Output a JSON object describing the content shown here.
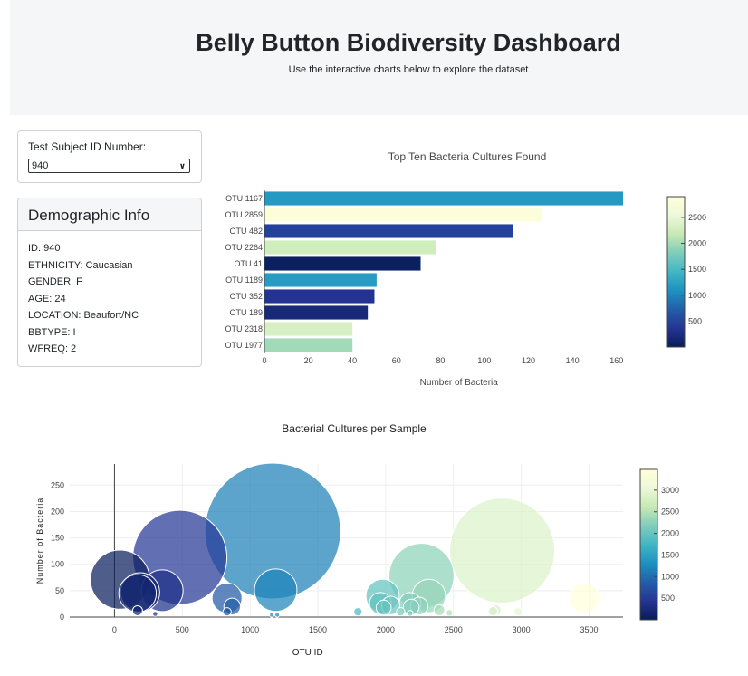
{
  "header": {
    "title": "Belly Button Biodiversity Dashboard",
    "subtitle": "Use the interactive charts below to explore the dataset"
  },
  "selector": {
    "label": "Test Subject ID Number:",
    "selected": "940",
    "chevron_icon": "chevron-down-icon"
  },
  "demographics": {
    "title": "Demographic Info",
    "lines": [
      "ID: 940",
      "ETHNICITY: Caucasian",
      "GENDER: F",
      "AGE: 24",
      "LOCATION: Beaufort/NC",
      "BBTYPE: I",
      "WFREQ: 2"
    ]
  },
  "chart_data": [
    {
      "type": "bar",
      "orientation": "horizontal",
      "title": "Top Ten Bacteria Cultures Found",
      "xlabel": "Number of Bacteria",
      "categories": [
        "OTU 1167",
        "OTU 2859",
        "OTU 482",
        "OTU 2264",
        "OTU 41",
        "OTU 1189",
        "OTU 352",
        "OTU 189",
        "OTU 2318",
        "OTU 1977"
      ],
      "values": [
        163,
        126,
        113,
        78,
        71,
        51,
        50,
        47,
        40,
        40
      ],
      "otu_ids": [
        1167,
        2859,
        482,
        2264,
        41,
        1189,
        352,
        189,
        2318,
        1977
      ],
      "xlim": [
        0,
        170
      ],
      "xticks": [
        0,
        20,
        40,
        60,
        80,
        100,
        120,
        140,
        160
      ],
      "colorbar": {
        "colorscale": "YlGnBu",
        "range": [
          0,
          2900
        ],
        "ticks": [
          500,
          1000,
          1500,
          2000,
          2500
        ]
      },
      "grid": false
    },
    {
      "type": "scatter",
      "title": "Bacterial Cultures per Sample",
      "xlabel": "OTU ID",
      "ylabel": "Number of Bacteria",
      "xlim": [
        -330,
        3750
      ],
      "ylim": [
        0,
        290
      ],
      "xticks": [
        0,
        500,
        1000,
        1500,
        2000,
        2500,
        3000,
        3500
      ],
      "yticks": [
        0,
        50,
        100,
        150,
        200,
        250
      ],
      "grid": true,
      "colorbar": {
        "colorscale": "YlGnBu",
        "range": [
          0,
          3480
        ],
        "ticks": [
          500,
          1000,
          1500,
          2000,
          2500,
          3000
        ]
      },
      "x": [
        41,
        170,
        189,
        352,
        482,
        830,
        868,
        1167,
        1189,
        1977,
        1960,
        1985,
        2037,
        2180,
        2188,
        2264,
        2318,
        2247,
        2859,
        3465,
        1795,
        2790,
        2810,
        2975,
        2395,
        2180,
        2110,
        2470,
        170,
        830,
        300,
        1200,
        1160
      ],
      "y": [
        71,
        45,
        47,
        50,
        113,
        36,
        20,
        163,
        51,
        40,
        26,
        18,
        22,
        26,
        19,
        78,
        40,
        21,
        126,
        36,
        10,
        11,
        13,
        10,
        13,
        7,
        10,
        8,
        12,
        10,
        6,
        4,
        4
      ]
    }
  ]
}
